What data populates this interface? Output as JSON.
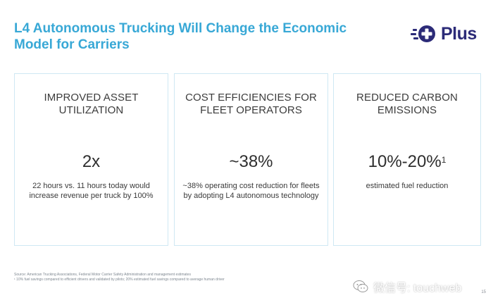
{
  "slide": {
    "title": "L4 Autonomous Trucking Will Change the Economic Model for Carriers",
    "logo_text": "Plus",
    "page_number": "15"
  },
  "cards": [
    {
      "heading": "IMPROVED ASSET UTILIZATION",
      "stat": "2x",
      "superscript": "",
      "description": "22 hours vs. 11 hours today would increase revenue per truck by 100%"
    },
    {
      "heading": "COST EFFICIENCIES FOR FLEET OPERATORS",
      "stat": "~38%",
      "superscript": "",
      "description": "~38% operating cost reduction for fleets by adopting L4 autonomous technology"
    },
    {
      "heading": "REDUCED CARBON EMISSIONS",
      "stat": "10%-20%",
      "superscript": "1",
      "description": "estimated fuel reduction"
    }
  ],
  "footnotes": {
    "source": "Source: American Trucking Associations, Federal Motor Carrier Safety Administration and management estimates",
    "note": "¹ 10% fuel savings compared to efficient drivers and validated by pilots; 20% estimated fuel savings compared to average human driver"
  },
  "watermark": {
    "text": "微信号: touchweb",
    "icon": "wechat-icon"
  },
  "colors": {
    "title": "#38a8d6",
    "logo": "#2c2b78",
    "card_border": "#cfe8f3"
  }
}
